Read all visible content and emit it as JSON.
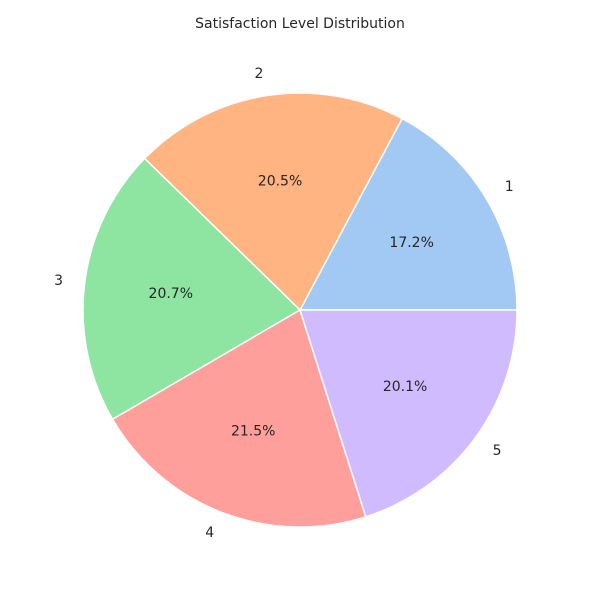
{
  "chart_data": {
    "type": "pie",
    "title": "Satisfaction Level Distribution",
    "labels": [
      "1",
      "2",
      "3",
      "4",
      "5"
    ],
    "values": [
      17.2,
      20.5,
      20.7,
      21.5,
      20.1
    ],
    "value_labels": [
      "17.2%",
      "20.5%",
      "20.7%",
      "21.5%",
      "20.1%"
    ],
    "colors": [
      "#a1c9f4",
      "#ffb482",
      "#8de5a1",
      "#ff9f9b",
      "#d0bbff"
    ],
    "start_angle_deg": 0,
    "direction": "counterclockwise",
    "wedge_edge_color": "#ffffff"
  }
}
